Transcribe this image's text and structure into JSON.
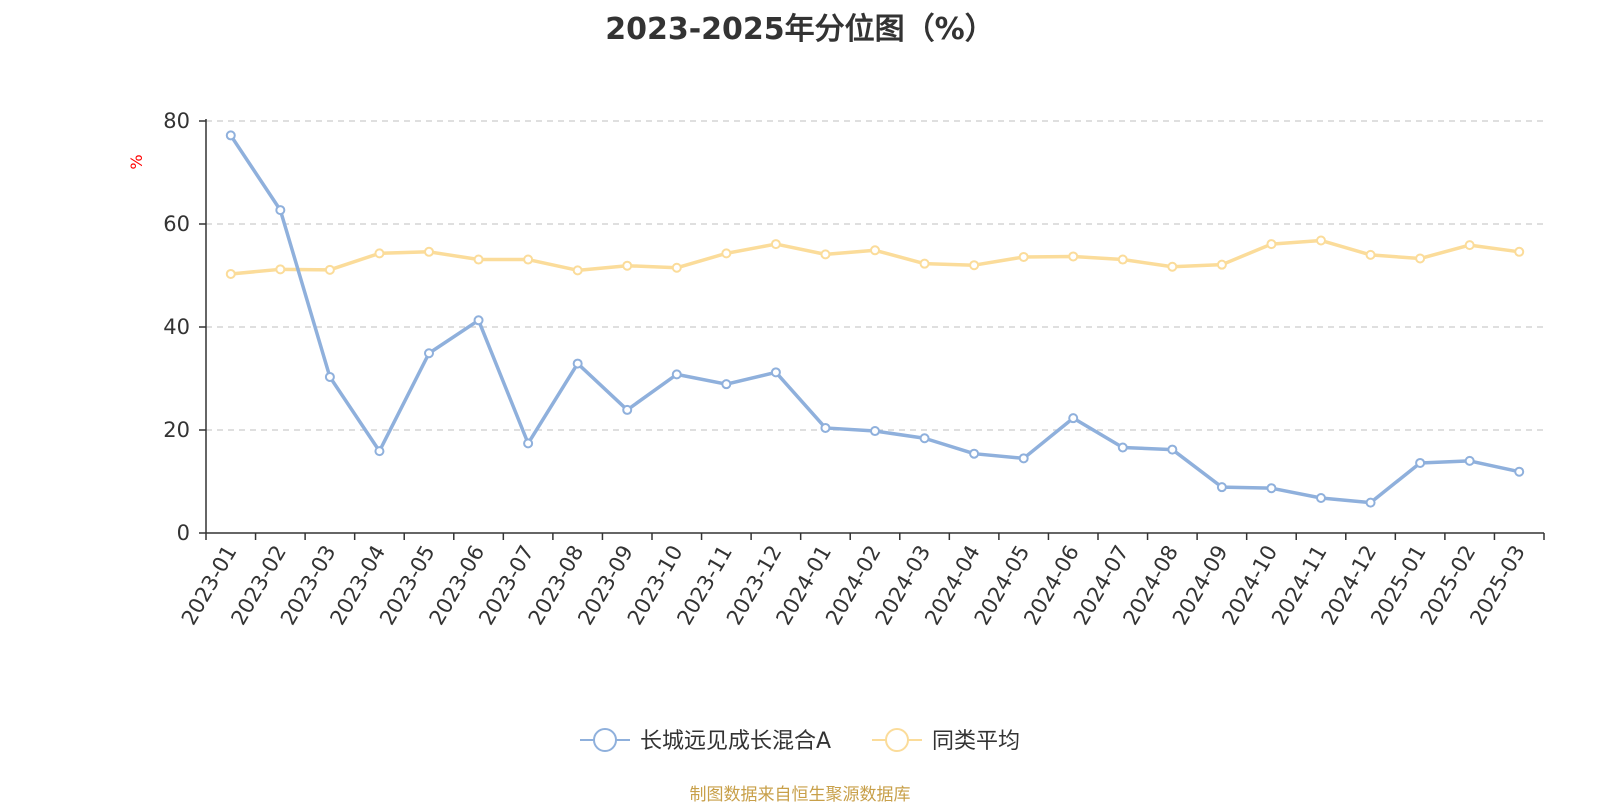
{
  "title": "2023-2025年分位图（%）",
  "source": "制图数据来自恒生聚源数据库",
  "chart_data": {
    "type": "line",
    "title": "2023-2025年分位图（%）",
    "ylabel": "%",
    "ylim": [
      0,
      80
    ],
    "yticks": [
      0,
      20,
      40,
      60,
      80
    ],
    "grid": true,
    "legend_position": "bottom-center",
    "categories": [
      "2023-01",
      "2023-02",
      "2023-03",
      "2023-04",
      "2023-05",
      "2023-06",
      "2023-07",
      "2023-08",
      "2023-09",
      "2023-10",
      "2023-11",
      "2023-12",
      "2024-01",
      "2024-02",
      "2024-03",
      "2024-04",
      "2024-05",
      "2024-06",
      "2024-07",
      "2024-08",
      "2024-09",
      "2024-10",
      "2024-11",
      "2024-12",
      "2025-01",
      "2025-02",
      "2025-03"
    ],
    "series": [
      {
        "name": "长城远见成长混合A",
        "color": "#8fb0dc",
        "values": [
          77.2,
          62.7,
          30.3,
          15.9,
          34.9,
          41.3,
          17.4,
          32.9,
          23.9,
          30.8,
          28.9,
          31.2,
          20.4,
          19.8,
          18.4,
          15.4,
          14.5,
          22.3,
          16.6,
          16.2,
          8.9,
          8.7,
          6.8,
          5.9,
          13.6,
          14.0,
          11.9
        ]
      },
      {
        "name": "同类平均",
        "color": "#fbdc9a",
        "values": [
          50.3,
          51.2,
          51.1,
          54.3,
          54.6,
          53.1,
          53.1,
          51.0,
          51.9,
          51.5,
          54.3,
          56.1,
          54.1,
          54.9,
          52.3,
          52.0,
          53.6,
          53.7,
          53.1,
          51.7,
          52.1,
          56.1,
          56.8,
          54.0,
          53.3,
          55.9,
          54.6
        ]
      }
    ]
  }
}
